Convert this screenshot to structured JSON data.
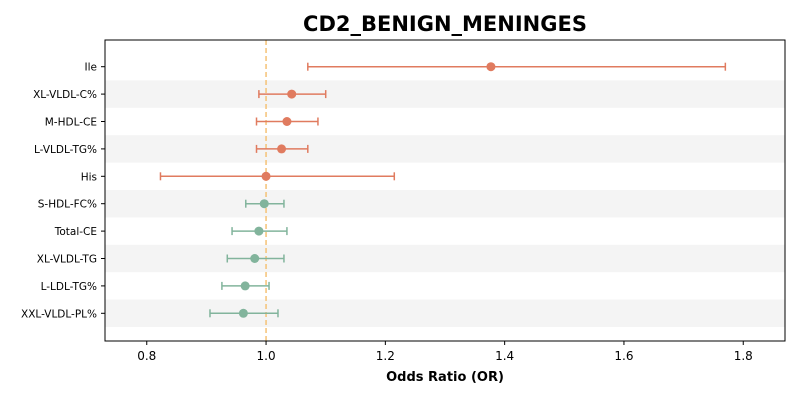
{
  "chart_data": {
    "type": "forest",
    "title": "CD2_BENIGN_MENINGES",
    "xlabel": "Odds Ratio (OR)",
    "xlim": [
      0.73,
      1.87
    ],
    "xticks": [
      0.8,
      1.0,
      1.2,
      1.4,
      1.6,
      1.8
    ],
    "xtick_labels": [
      "0.8",
      "1.0",
      "1.2",
      "1.4",
      "1.6",
      "1.8"
    ],
    "reference_line": 1.0,
    "categories": [
      "Ile",
      "XL-VLDL-C%",
      "M-HDL-CE",
      "L-VLDL-TG%",
      "His",
      "S-HDL-FC%",
      "Total-CE",
      "XL-VLDL-TG",
      "L-LDL-TG%",
      "XXL-VLDL-PL%"
    ],
    "or": [
      1.377,
      1.043,
      1.035,
      1.026,
      1.0,
      0.997,
      0.988,
      0.981,
      0.965,
      0.962
    ],
    "ci_low": [
      1.07,
      0.988,
      0.984,
      0.984,
      0.823,
      0.966,
      0.943,
      0.935,
      0.926,
      0.906
    ],
    "ci_high": [
      1.77,
      1.1,
      1.087,
      1.07,
      1.215,
      1.03,
      1.035,
      1.03,
      1.005,
      1.02
    ],
    "colors": {
      "positive": "#e07b5f",
      "negative": "#82b49c",
      "reference": "#f5c276",
      "band": "#f4f4f4"
    }
  }
}
